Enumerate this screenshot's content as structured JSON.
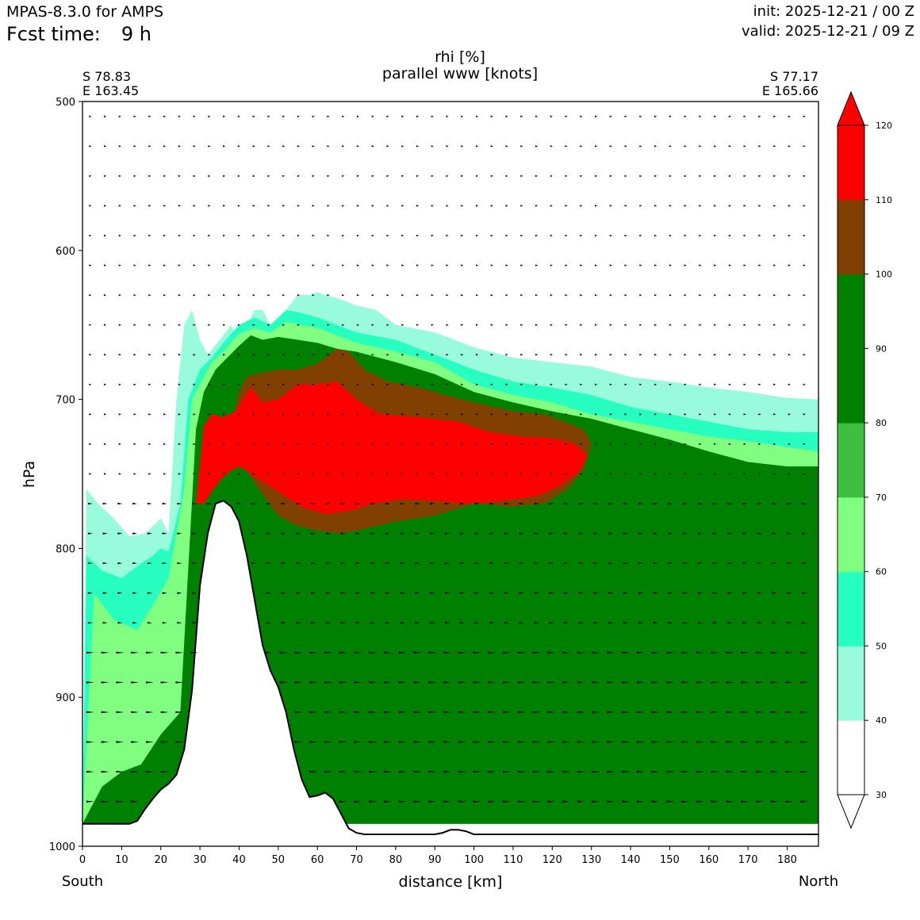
{
  "header": {
    "model": "MPAS-8.3.0 for AMPS",
    "fcst_label": "Fcst time:",
    "fcst_value": "9 h",
    "init": "init: 2025-12-21 / 00 Z",
    "valid": "valid: 2025-12-21 / 09 Z"
  },
  "endpoints": {
    "left_lat": "S 78.83",
    "left_lon": "E 163.45",
    "right_lat": "S 77.17",
    "right_lon": "E 165.66",
    "left_label": "South",
    "right_label": "North"
  },
  "chart_data": {
    "type": "contour cross-section",
    "title": "rhi [%]",
    "subtitle": "parallel www [knots]",
    "xlabel": "distance [km]",
    "ylabel": "hPa",
    "xlim": [
      0,
      188
    ],
    "ylim": [
      1000,
      500
    ],
    "y_inverted": true,
    "xticks": [
      0,
      10,
      20,
      30,
      40,
      50,
      60,
      70,
      80,
      90,
      100,
      110,
      120,
      130,
      140,
      150,
      160,
      170,
      180
    ],
    "yticks": [
      500,
      600,
      700,
      800,
      900,
      1000
    ],
    "colorbar": {
      "levels": [
        30,
        40,
        50,
        60,
        70,
        80,
        90,
        100,
        110,
        120
      ],
      "tick_labels": [
        "30",
        "40",
        "50",
        "60",
        "70",
        "80",
        "90",
        "100",
        "110",
        "120"
      ],
      "colors": [
        "#ffffff",
        "#98fbdc",
        "#27ffc0",
        "#80ff80",
        "#3fbf3f",
        "#008000",
        "#008000",
        "#804000",
        "#ff0000"
      ],
      "extend": "both",
      "lower_extend_color": "#ffffff",
      "upper_extend_color": "#ff0000"
    },
    "terrain_profile": {
      "x": [
        0,
        12,
        14,
        16,
        18,
        20,
        22,
        24,
        26,
        28,
        30,
        32,
        34,
        36,
        38,
        40,
        42,
        44,
        46,
        48,
        50,
        52,
        54,
        56,
        58,
        60,
        62,
        64,
        66,
        68,
        70,
        72,
        80,
        90,
        92,
        94,
        96,
        98,
        100,
        188
      ],
      "p": [
        985,
        985,
        983,
        975,
        968,
        962,
        958,
        952,
        935,
        895,
        825,
        790,
        770,
        768,
        772,
        782,
        805,
        835,
        865,
        882,
        893,
        910,
        935,
        955,
        967,
        966,
        964,
        968,
        978,
        988,
        991,
        992,
        992,
        992,
        991,
        989,
        989,
        990,
        992,
        992
      ]
    },
    "rhi_regions": [
      {
        "name": "rh-40-plus",
        "value": 40,
        "x": [
          0,
          1,
          4,
          8,
          12,
          16,
          20,
          22,
          24,
          26,
          28,
          30,
          32,
          35,
          38,
          40,
          42,
          44,
          46,
          48,
          50,
          52,
          55,
          58,
          60,
          62,
          65,
          68,
          70,
          75,
          80,
          90,
          100,
          110,
          120,
          130,
          140,
          150,
          160,
          170,
          180,
          188,
          188,
          0
        ],
        "p": [
          985,
          760,
          770,
          780,
          792,
          790,
          780,
          790,
          700,
          650,
          640,
          660,
          670,
          660,
          650,
          660,
          650,
          640,
          640,
          650,
          650,
          640,
          630,
          630,
          628,
          630,
          632,
          635,
          637,
          640,
          650,
          655,
          665,
          672,
          675,
          678,
          685,
          688,
          692,
          695,
          699,
          700,
          985,
          985
        ]
      },
      {
        "name": "rh-50-plus",
        "value": 50,
        "x": [
          0,
          1,
          5,
          10,
          15,
          18,
          20,
          22,
          25,
          27,
          30,
          33,
          36,
          40,
          44,
          48,
          52,
          56,
          60,
          65,
          70,
          80,
          90,
          100,
          110,
          120,
          130,
          140,
          150,
          160,
          170,
          180,
          188,
          188,
          0
        ],
        "p": [
          985,
          805,
          815,
          820,
          810,
          805,
          800,
          802,
          770,
          700,
          680,
          672,
          662,
          650,
          645,
          650,
          640,
          642,
          645,
          650,
          655,
          660,
          670,
          680,
          688,
          692,
          697,
          705,
          710,
          715,
          720,
          722,
          722,
          985,
          985
        ]
      },
      {
        "name": "rh-60-plus",
        "value": 60,
        "x": [
          0,
          3,
          8,
          14,
          18,
          22,
          26,
          28,
          30,
          33,
          36,
          40,
          44,
          48,
          52,
          56,
          60,
          66,
          70,
          80,
          90,
          100,
          110,
          120,
          130,
          140,
          150,
          160,
          170,
          180,
          188,
          188,
          0
        ],
        "p": [
          985,
          830,
          848,
          855,
          838,
          820,
          760,
          700,
          690,
          675,
          668,
          656,
          652,
          655,
          648,
          650,
          652,
          658,
          662,
          668,
          675,
          690,
          697,
          702,
          710,
          715,
          720,
          725,
          728,
          732,
          735,
          985,
          985
        ]
      },
      {
        "name": "rh-80-plus",
        "value": 80,
        "x": [
          0,
          5,
          10,
          15,
          20,
          25,
          29,
          31,
          34,
          37,
          40,
          43,
          46,
          50,
          55,
          60,
          65,
          70,
          80,
          90,
          100,
          110,
          120,
          130,
          140,
          150,
          160,
          170,
          180,
          188,
          188,
          0
        ],
        "p": [
          985,
          960,
          950,
          945,
          925,
          910,
          720,
          695,
          680,
          672,
          664,
          657,
          660,
          658,
          660,
          662,
          666,
          668,
          675,
          683,
          695,
          702,
          708,
          713,
          720,
          727,
          735,
          742,
          745,
          745,
          985,
          985
        ]
      },
      {
        "name": "rh-100-plus",
        "value": 100,
        "x": [
          38,
          40,
          42,
          46,
          50,
          55,
          60,
          65,
          68,
          72,
          78,
          86,
          94,
          100,
          110,
          118,
          124,
          128,
          130,
          128,
          124,
          118,
          110,
          100,
          90,
          80,
          72,
          66,
          60,
          55,
          50,
          45,
          42,
          39
        ],
        "p": [
          720,
          695,
          685,
          682,
          680,
          680,
          676,
          666,
          668,
          680,
          688,
          692,
          698,
          702,
          708,
          710,
          716,
          720,
          730,
          748,
          760,
          770,
          772,
          770,
          778,
          782,
          787,
          790,
          788,
          785,
          778,
          760,
          748,
          735
        ]
      },
      {
        "name": "rh-110-plus",
        "value": 110,
        "x": [
          29,
          31,
          33,
          36,
          39,
          41,
          43,
          46,
          50,
          55,
          60,
          65,
          70,
          76,
          86,
          96,
          104,
          112,
          120,
          126,
          129,
          127,
          122,
          116,
          108,
          98,
          90,
          82,
          74,
          68,
          62,
          56,
          50,
          46,
          44,
          42,
          40,
          38,
          36,
          33,
          31,
          29
        ],
        "p": [
          770,
          718,
          710,
          712,
          708,
          700,
          692,
          702,
          700,
          690,
          690,
          688,
          700,
          710,
          712,
          715,
          722,
          725,
          726,
          730,
          738,
          748,
          758,
          765,
          768,
          770,
          768,
          767,
          770,
          775,
          777,
          772,
          762,
          755,
          752,
          748,
          745,
          748,
          752,
          762,
          770,
          770
        ]
      }
    ],
    "wind_barb_rows_hpa": [
      510,
      530,
      550,
      570,
      590,
      610,
      630,
      650,
      670,
      690,
      710,
      730,
      750,
      770,
      790,
      810,
      830,
      850,
      870,
      890,
      910,
      930,
      950,
      970,
      990
    ]
  }
}
